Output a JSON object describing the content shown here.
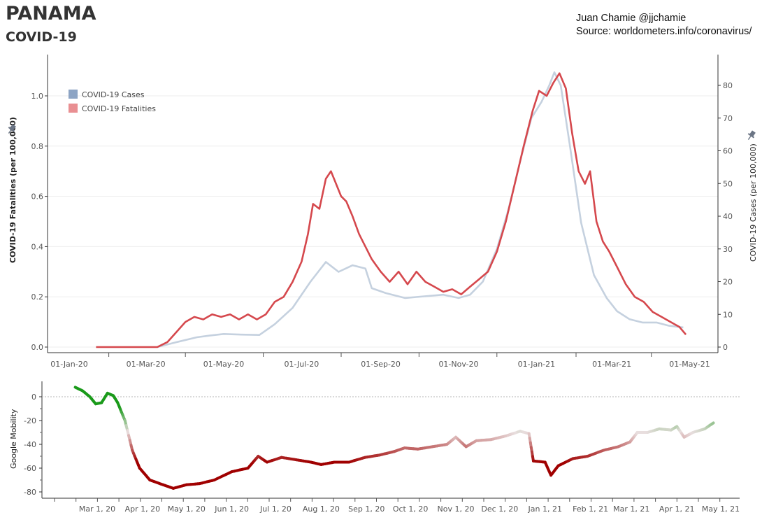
{
  "header": {
    "title": "PANAMA",
    "subtitle": "COVID-19",
    "credit_line1": "Juan Chamie @jjchamie",
    "credit_line2": "Source: worldometers.info/coronavirus/"
  },
  "colors": {
    "cases": "#c5d1df",
    "fatalities": "#d5484d",
    "cases_legend": "#8da4c4",
    "fatalities_legend": "#e98f92",
    "mobility_low": "#a00000",
    "mobility_mid": "#e8dede",
    "mobility_high": "#1a9a1a"
  },
  "chart_data": [
    {
      "type": "line",
      "title": "",
      "xlabel": "",
      "ylabel": "COVID-19 Fatalities (per 100,000)",
      "y2label": "COVID-19 Cases (per 100,000)",
      "ylim": [
        0,
        1.1
      ],
      "y2lim": [
        0,
        85
      ],
      "y_ticks": [
        "0.0",
        "0.2",
        "0.4",
        "0.6",
        "0.8",
        "1.0"
      ],
      "y2_ticks": [
        "0",
        "10",
        "20",
        "30",
        "40",
        "50",
        "60",
        "70",
        "80"
      ],
      "x_ticks": [
        "01-Jan-20",
        "01-Mar-20",
        "01-May-20",
        "01-Jul-20",
        "01-Sep-20",
        "01-Nov-20",
        "01-Jan-21",
        "01-Mar-21",
        "01-May-21"
      ],
      "legend": [
        "COVID-19 Cases",
        "COVID-19 Fatalities"
      ],
      "legend_position": "top-left",
      "grid": true,
      "series": [
        {
          "name": "COVID-19 Fatalities",
          "axis": "left",
          "points": [
            [
              "2020-01-22",
              0
            ],
            [
              "2020-03-01",
              0
            ],
            [
              "2020-03-10",
              0.0
            ],
            [
              "2020-03-18",
              0.02
            ],
            [
              "2020-03-25",
              0.06
            ],
            [
              "2020-04-01",
              0.1
            ],
            [
              "2020-04-08",
              0.12
            ],
            [
              "2020-04-15",
              0.11
            ],
            [
              "2020-04-22",
              0.13
            ],
            [
              "2020-04-29",
              0.12
            ],
            [
              "2020-05-06",
              0.13
            ],
            [
              "2020-05-13",
              0.11
            ],
            [
              "2020-05-20",
              0.13
            ],
            [
              "2020-05-27",
              0.11
            ],
            [
              "2020-06-03",
              0.13
            ],
            [
              "2020-06-10",
              0.18
            ],
            [
              "2020-06-17",
              0.2
            ],
            [
              "2020-06-24",
              0.26
            ],
            [
              "2020-07-01",
              0.34
            ],
            [
              "2020-07-06",
              0.45
            ],
            [
              "2020-07-10",
              0.57
            ],
            [
              "2020-07-15",
              0.55
            ],
            [
              "2020-07-20",
              0.67
            ],
            [
              "2020-07-24",
              0.7
            ],
            [
              "2020-07-28",
              0.65
            ],
            [
              "2020-08-01",
              0.6
            ],
            [
              "2020-08-05",
              0.58
            ],
            [
              "2020-08-10",
              0.52
            ],
            [
              "2020-08-15",
              0.45
            ],
            [
              "2020-08-20",
              0.4
            ],
            [
              "2020-08-25",
              0.35
            ],
            [
              "2020-09-01",
              0.3
            ],
            [
              "2020-09-08",
              0.26
            ],
            [
              "2020-09-15",
              0.3
            ],
            [
              "2020-09-22",
              0.25
            ],
            [
              "2020-09-29",
              0.3
            ],
            [
              "2020-10-06",
              0.26
            ],
            [
              "2020-10-13",
              0.24
            ],
            [
              "2020-10-20",
              0.22
            ],
            [
              "2020-10-27",
              0.23
            ],
            [
              "2020-11-03",
              0.21
            ],
            [
              "2020-11-10",
              0.24
            ],
            [
              "2020-11-17",
              0.27
            ],
            [
              "2020-11-24",
              0.3
            ],
            [
              "2020-12-01",
              0.38
            ],
            [
              "2020-12-08",
              0.5
            ],
            [
              "2020-12-15",
              0.65
            ],
            [
              "2020-12-22",
              0.8
            ],
            [
              "2020-12-29",
              0.94
            ],
            [
              "2021-01-03",
              1.02
            ],
            [
              "2021-01-09",
              1.0
            ],
            [
              "2021-01-14",
              1.05
            ],
            [
              "2021-01-19",
              1.09
            ],
            [
              "2021-01-24",
              1.03
            ],
            [
              "2021-01-29",
              0.85
            ],
            [
              "2021-02-03",
              0.7
            ],
            [
              "2021-02-08",
              0.65
            ],
            [
              "2021-02-12",
              0.7
            ],
            [
              "2021-02-17",
              0.5
            ],
            [
              "2021-02-22",
              0.42
            ],
            [
              "2021-02-27",
              0.38
            ],
            [
              "2021-03-05",
              0.32
            ],
            [
              "2021-03-12",
              0.25
            ],
            [
              "2021-03-19",
              0.2
            ],
            [
              "2021-03-26",
              0.18
            ],
            [
              "2021-04-02",
              0.14
            ],
            [
              "2021-04-09",
              0.12
            ],
            [
              "2021-04-16",
              0.1
            ],
            [
              "2021-04-23",
              0.08
            ],
            [
              "2021-04-28",
              0.05
            ]
          ]
        },
        {
          "name": "COVID-19 Cases",
          "axis": "right",
          "points": [
            [
              "2020-03-10",
              0
            ],
            [
              "2020-03-25",
              1.5
            ],
            [
              "2020-04-10",
              3
            ],
            [
              "2020-04-20",
              3.5
            ],
            [
              "2020-05-01",
              4
            ],
            [
              "2020-05-15",
              3.8
            ],
            [
              "2020-05-29",
              3.7
            ],
            [
              "2020-06-10",
              7
            ],
            [
              "2020-06-24",
              12
            ],
            [
              "2020-07-08",
              20
            ],
            [
              "2020-07-20",
              26
            ],
            [
              "2020-07-30",
              23
            ],
            [
              "2020-08-10",
              25
            ],
            [
              "2020-08-20",
              24
            ],
            [
              "2020-08-25",
              18
            ],
            [
              "2020-09-05",
              16.5
            ],
            [
              "2020-09-20",
              15
            ],
            [
              "2020-10-05",
              15.5
            ],
            [
              "2020-10-20",
              16
            ],
            [
              "2020-11-01",
              15
            ],
            [
              "2020-11-10",
              16
            ],
            [
              "2020-11-20",
              20
            ],
            [
              "2020-12-01",
              30
            ],
            [
              "2020-12-10",
              42
            ],
            [
              "2020-12-20",
              58
            ],
            [
              "2020-12-28",
              70
            ],
            [
              "2021-01-05",
              75
            ],
            [
              "2021-01-11",
              80
            ],
            [
              "2021-01-15",
              84
            ],
            [
              "2021-01-20",
              80
            ],
            [
              "2021-01-27",
              62
            ],
            [
              "2021-02-05",
              38
            ],
            [
              "2021-02-15",
              22
            ],
            [
              "2021-02-25",
              15
            ],
            [
              "2021-03-05",
              11
            ],
            [
              "2021-03-15",
              8.5
            ],
            [
              "2021-03-25",
              7.5
            ],
            [
              "2021-04-05",
              7.5
            ],
            [
              "2021-04-15",
              6.5
            ],
            [
              "2021-04-26",
              6
            ]
          ]
        }
      ]
    },
    {
      "type": "line",
      "title": "",
      "xlabel": "",
      "ylabel": "Google Mobility",
      "ylim": [
        -83,
        12
      ],
      "y_ticks": [
        "0",
        "-20",
        "-40",
        "-60",
        "-80"
      ],
      "x_ticks": [
        "Mar 1, 20",
        "Apr 1, 20",
        "May 1, 20",
        "Jun 1, 20",
        "Jul 1, 20",
        "Aug 1, 20",
        "Sep 1, 20",
        "Oct 1, 20",
        "Nov 1, 20",
        "Dec 1, 20",
        "Jan 1, 21",
        "Feb 1, 21",
        "Mar 1, 21",
        "Apr 1, 21",
        "May 1, 21"
      ],
      "series": [
        {
          "name": "Google Mobility",
          "points": [
            [
              "2020-02-15",
              8
            ],
            [
              "2020-02-20",
              5
            ],
            [
              "2020-02-25",
              0
            ],
            [
              "2020-02-29",
              -6
            ],
            [
              "2020-03-04",
              -5
            ],
            [
              "2020-03-08",
              3
            ],
            [
              "2020-03-12",
              1
            ],
            [
              "2020-03-15",
              -5
            ],
            [
              "2020-03-20",
              -20
            ],
            [
              "2020-03-25",
              -45
            ],
            [
              "2020-03-30",
              -60
            ],
            [
              "2020-04-06",
              -70
            ],
            [
              "2020-04-15",
              -74
            ],
            [
              "2020-04-22",
              -77
            ],
            [
              "2020-05-01",
              -74
            ],
            [
              "2020-05-10",
              -73
            ],
            [
              "2020-05-20",
              -70
            ],
            [
              "2020-06-01",
              -63
            ],
            [
              "2020-06-12",
              -60
            ],
            [
              "2020-06-19",
              -50
            ],
            [
              "2020-06-25",
              -55
            ],
            [
              "2020-07-05",
              -51
            ],
            [
              "2020-07-15",
              -53
            ],
            [
              "2020-07-25",
              -55
            ],
            [
              "2020-08-01",
              -57
            ],
            [
              "2020-08-10",
              -55
            ],
            [
              "2020-08-20",
              -55
            ],
            [
              "2020-08-31",
              -51
            ],
            [
              "2020-09-10",
              -49
            ],
            [
              "2020-09-20",
              -46
            ],
            [
              "2020-09-27",
              -43
            ],
            [
              "2020-10-06",
              -44
            ],
            [
              "2020-10-16",
              -42
            ],
            [
              "2020-10-26",
              -40
            ],
            [
              "2020-11-01",
              -34
            ],
            [
              "2020-11-08",
              -42
            ],
            [
              "2020-11-15",
              -37
            ],
            [
              "2020-11-25",
              -36
            ],
            [
              "2020-12-05",
              -33
            ],
            [
              "2020-12-15",
              -29
            ],
            [
              "2020-12-21",
              -31
            ],
            [
              "2020-12-24",
              -54
            ],
            [
              "2021-01-01",
              -55
            ],
            [
              "2021-01-05",
              -66
            ],
            [
              "2021-01-10",
              -58
            ],
            [
              "2021-01-20",
              -52
            ],
            [
              "2021-01-30",
              -50
            ],
            [
              "2021-02-10",
              -45
            ],
            [
              "2021-02-20",
              -42
            ],
            [
              "2021-02-28",
              -38
            ],
            [
              "2021-03-05",
              -30
            ],
            [
              "2021-03-12",
              -30
            ],
            [
              "2021-03-20",
              -27
            ],
            [
              "2021-03-28",
              -28
            ],
            [
              "2021-04-01",
              -25
            ],
            [
              "2021-04-06",
              -34
            ],
            [
              "2021-04-12",
              -30
            ],
            [
              "2021-04-20",
              -27
            ],
            [
              "2021-04-26",
              -22
            ]
          ]
        }
      ]
    }
  ]
}
